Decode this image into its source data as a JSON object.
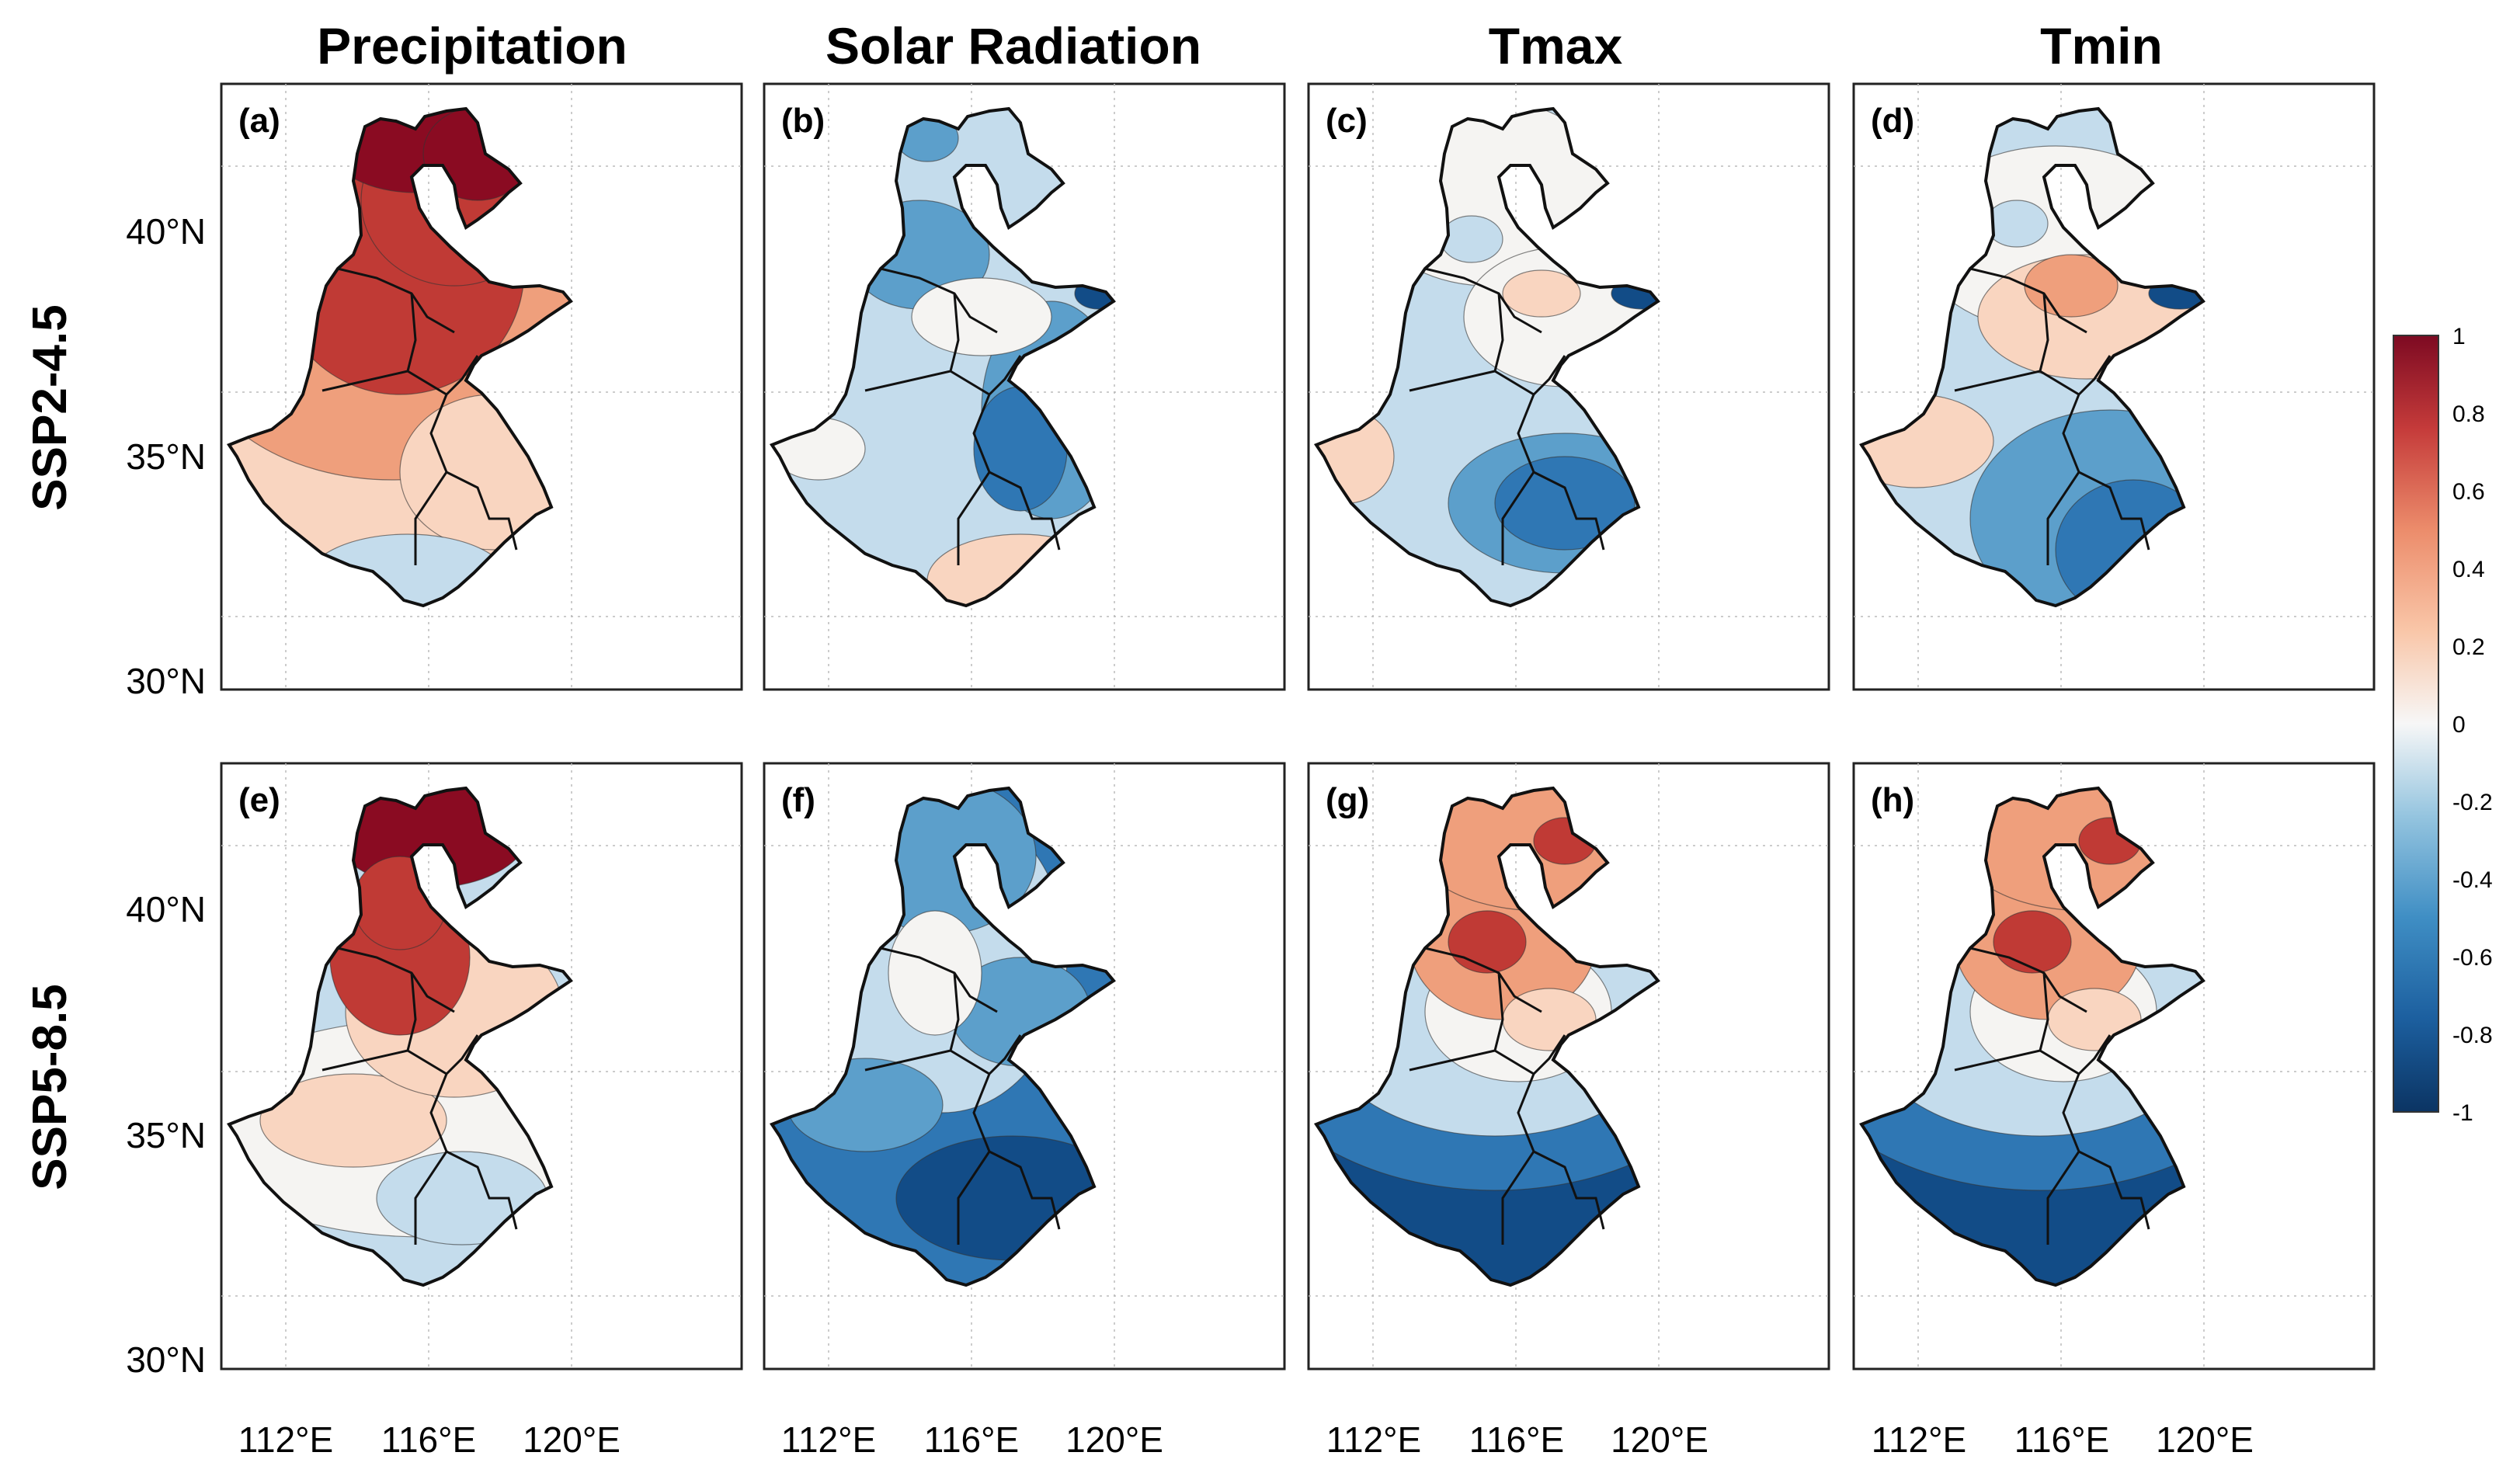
{
  "figure": {
    "columns": [
      "Precipitation",
      "Solar Radiation",
      "Tmax",
      "Tmin"
    ],
    "rows": [
      "SSP2-4.5",
      "SSP5-8.5"
    ],
    "panels": [
      {
        "label": "(a)",
        "variable": "Precipitation",
        "scenario": "SSP2-4.5"
      },
      {
        "label": "(b)",
        "variable": "Solar Radiation",
        "scenario": "SSP2-4.5"
      },
      {
        "label": "(c)",
        "variable": "Tmax",
        "scenario": "SSP2-4.5"
      },
      {
        "label": "(d)",
        "variable": "Tmin",
        "scenario": "SSP2-4.5"
      },
      {
        "label": "(e)",
        "variable": "Precipitation",
        "scenario": "SSP5-8.5"
      },
      {
        "label": "(f)",
        "variable": "Solar Radiation",
        "scenario": "SSP5-8.5"
      },
      {
        "label": "(g)",
        "variable": "Tmax",
        "scenario": "SSP5-8.5"
      },
      {
        "label": "(h)",
        "variable": "Tmin",
        "scenario": "SSP5-8.5"
      }
    ],
    "lat_ticks": [
      "40°N",
      "35°N",
      "30°N"
    ],
    "lon_ticks": [
      "112°E",
      "116°E",
      "120°E"
    ],
    "colorbar": {
      "ticks": [
        "1",
        "0.8",
        "0.6",
        "0.4",
        "0.2",
        "0",
        "-0.2",
        "-0.4",
        "-0.6",
        "-0.8",
        "-1"
      ],
      "range": [
        -1,
        1
      ],
      "colors": [
        "#0b3463",
        "#144e8a",
        "#2166ac",
        "#3a86bd",
        "#6aacd2",
        "#9ccae1",
        "#c6dfee",
        "#e3eef6",
        "#f7f7f7",
        "#fbe4d6",
        "#f9c9ad",
        "#f2a482",
        "#e07b5f",
        "#cb4f44",
        "#b2232f",
        "#8a0b22"
      ]
    }
  },
  "colors": {
    "darkred": "#8a0b22",
    "red": "#c03a35",
    "orange": "#ef9f7c",
    "peach": "#f9d5c0",
    "white": "#f5f4f2",
    "lightblue": "#c4dcec",
    "blue": "#5c9fcb",
    "midblue": "#2f77b4",
    "darkblue": "#124c87"
  }
}
